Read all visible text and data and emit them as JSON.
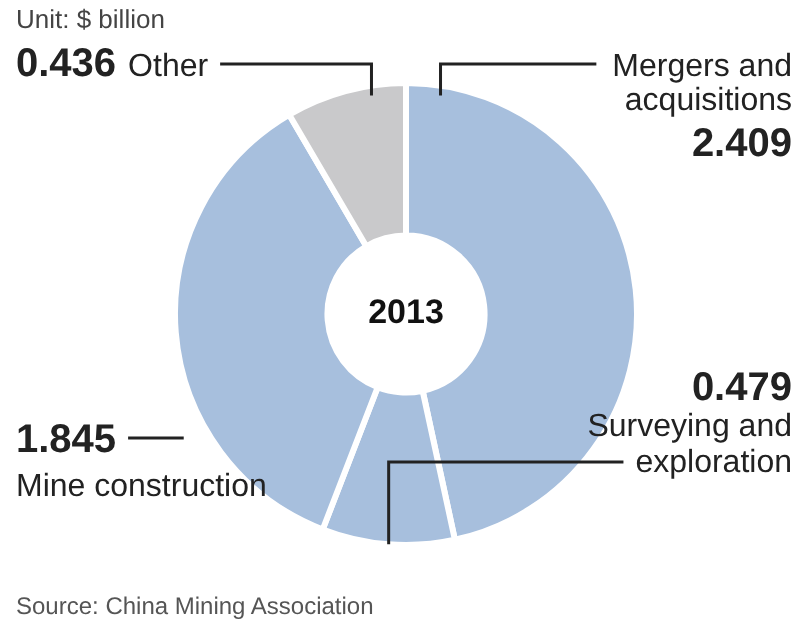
{
  "chart_data": {
    "type": "donut",
    "title": "2013",
    "subtitle": "Unit: $ billion",
    "categories": [
      "Mergers and acquisitions",
      "Surveying and exploration",
      "Mine construction",
      "Other"
    ],
    "values": [
      2.409,
      0.479,
      1.845,
      0.436
    ],
    "colors": [
      "#a7bfdd",
      "#a7bfdd",
      "#a7bfdd",
      "#c9c9cb"
    ],
    "data_labels": true,
    "legend": false,
    "annotations": [
      "Source: China Mining Association"
    ]
  }
}
